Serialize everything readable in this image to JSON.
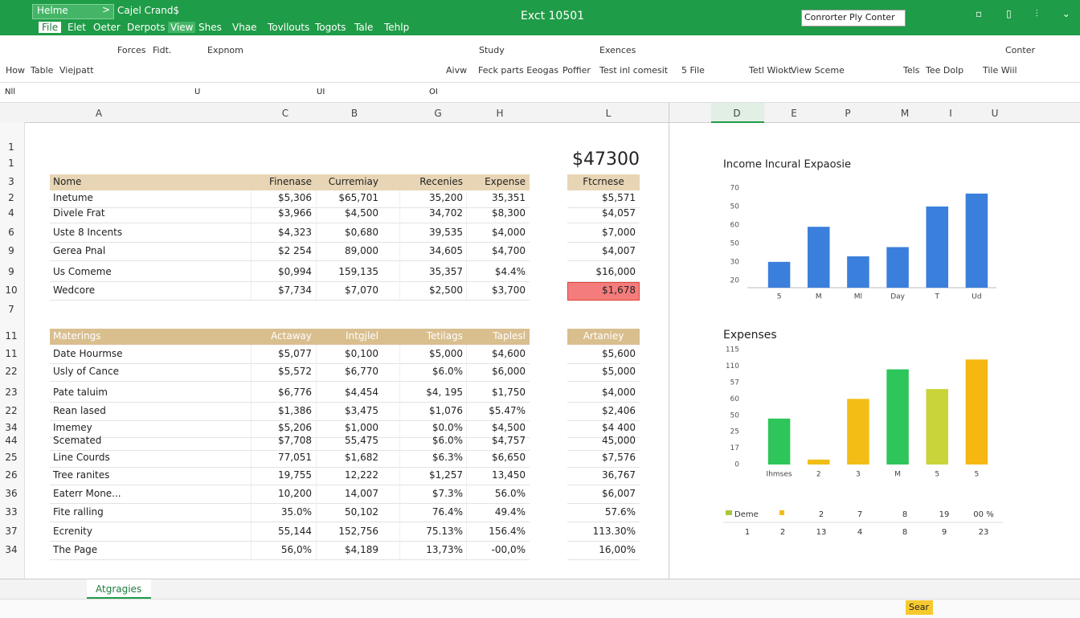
{
  "titlebar": {
    "menu": "Helme",
    "book": "Cajel Crand$",
    "title": "Exct 10501",
    "search": "Conrorter Ply Conter"
  },
  "tabs": [
    "File",
    "Elet",
    "Oeter",
    "Derpots",
    "View",
    "Shes",
    "Vhae",
    "Tovllouts",
    "Togots",
    "Tale",
    "Tehlp"
  ],
  "ribbon": [
    "Forces",
    "Fidt.",
    "Expnom",
    "Study",
    "Exences",
    "Conter",
    "How",
    "Table",
    "Viejpatt",
    "Aivw",
    "Feck parts Eeogas",
    "Poffier",
    "Test inl comesit",
    "5 File",
    "Tetl Wiokt",
    "View Sceme",
    "Tels",
    "Tee Dolp",
    "Tile Wiil"
  ],
  "formula_bar": {
    "name_box": "Nll",
    "marks": [
      "U",
      "UI",
      "OI"
    ]
  },
  "column_headers": [
    "A",
    "C",
    "B",
    "G",
    "H",
    "L",
    "D",
    "E",
    "P",
    "M",
    "I",
    "U"
  ],
  "row_numbers": [
    "1",
    "1",
    "3",
    "2",
    "4",
    "6",
    "9",
    "9",
    "10",
    "7",
    "11",
    "11",
    "22",
    "23",
    "22",
    "34",
    "44",
    "25",
    "26",
    "36",
    "33",
    "37",
    "34"
  ],
  "big_value": "$47300",
  "table1": {
    "header": [
      "Nome",
      "Finenase",
      "Curremiay",
      "Recenies",
      "Expense"
    ],
    "rows": [
      [
        "Inetume",
        "$5,306",
        "$65,701",
        "35,200",
        "35,351"
      ],
      [
        "Divele Frat",
        "$3,966",
        "$4,500",
        "34,702",
        "$8,300"
      ],
      [
        "Uste 8 Incents",
        "$4,323",
        "$0,680",
        "39,535",
        "$4,000"
      ],
      [
        "Gerea Pnal",
        "$2 254",
        "89,000",
        "34,605",
        "$4,700"
      ],
      [
        "Us Comeme",
        "$0,994",
        "159,135",
        "35,357",
        "$4.4%"
      ],
      [
        "Wedcore",
        "$7,734",
        "$7,070",
        "$2,500",
        "$3,700"
      ]
    ]
  },
  "side1": {
    "header": "Ftcrnese",
    "values": [
      "$5,571",
      "$4,057",
      "$7,000",
      "$4,007",
      "$16,000",
      "$1,678"
    ]
  },
  "table2": {
    "header": [
      "Materings",
      "Actaway",
      "Intgjlel",
      "Tetilags",
      "Taplesl"
    ],
    "rows": [
      [
        "Date Hourmse",
        "$5,077",
        "$0,100",
        "$5,000",
        "$4,600"
      ],
      [
        "Usly of Cance",
        "$5,572",
        "$6,770",
        "$6.0%",
        "$6,000"
      ],
      [
        "Pate taluim",
        "$6,776",
        "$4,454",
        "$4, 195",
        "$1,750"
      ],
      [
        "Rean lased",
        "$1,386",
        "$3,475",
        "$1,076",
        "$5.47%"
      ],
      [
        "Imemey",
        "$5,206",
        "$1,000",
        "$0.0%",
        "$4,500"
      ],
      [
        "Scemated",
        "$7,708",
        "55,475",
        "$6.0%",
        "$4,757"
      ],
      [
        "Line Courds",
        "77,051",
        "$1,682",
        "$6.3%",
        "$6,650"
      ],
      [
        "Tree ranites",
        "19,755",
        "12,222",
        "$1,257",
        "13,450"
      ],
      [
        "Eaterr Mone...",
        "10,200",
        "14,007",
        "$7.3%",
        "56.0%"
      ],
      [
        "Fite ralling",
        "35.0%",
        "50,102",
        "76.4%",
        "49.4%"
      ],
      [
        "Ecrenity",
        "55,144",
        "152,756",
        "75.13%",
        "156.4%"
      ],
      [
        "The Page",
        "56,0%",
        "$4,189",
        "13,73%",
        "-00,0%"
      ]
    ]
  },
  "side2": {
    "header": "Artaniey",
    "values": [
      "$5,600",
      "$5,000",
      "$4,000",
      "$2,406",
      "$4 400",
      "45,000",
      "$7,576",
      "36,767",
      "$6,007",
      "57.6%",
      "113.30%",
      "16,00%"
    ]
  },
  "chart_data": [
    {
      "type": "bar",
      "title": "Income Incural Expaosie",
      "categories": [
        "5",
        "M",
        "Ml",
        "Day",
        "T",
        "Ud"
      ],
      "values": [
        30,
        49,
        33,
        38,
        60,
        67
      ],
      "color": "#3b7fdc",
      "ylim": [
        16,
        80
      ],
      "yticks": [
        70,
        {
          "value": 60,
          "label": "50"
        },
        {
          "value": 50,
          "label": "60"
        },
        {
          "value": 40,
          "label": "50"
        },
        30,
        20
      ],
      "grid": false
    },
    {
      "type": "bar",
      "title": "Expenses",
      "categories": [
        "Ihmses",
        "2",
        "3",
        "M",
        "5",
        "5"
      ],
      "values": [
        28,
        3,
        40,
        58,
        46,
        64
      ],
      "colors": [
        "#2ec55a",
        "#f2be16",
        "#f2be16",
        "#2ec55a",
        "#c8d43a",
        "#f6b713"
      ],
      "ylim": [
        0,
        72
      ],
      "yticks": [
        {
          "value": 70,
          "label": "115"
        },
        {
          "value": 60,
          "label": "110"
        },
        {
          "value": 50,
          "label": "57"
        },
        {
          "value": 40,
          "label": "60"
        },
        {
          "value": 30,
          "label": "50"
        },
        {
          "value": 20,
          "label": "25"
        },
        {
          "value": 10,
          "label": "17"
        },
        0
      ],
      "grid": false
    }
  ],
  "chart_footer": {
    "row1": [
      "Deme",
      "2",
      "7",
      "8",
      "19",
      "00 %"
    ],
    "row2": [
      "1",
      "2",
      "13",
      "4",
      "8",
      "9",
      "23"
    ]
  },
  "sheet_tab": "Atgragies",
  "status": "Sear"
}
